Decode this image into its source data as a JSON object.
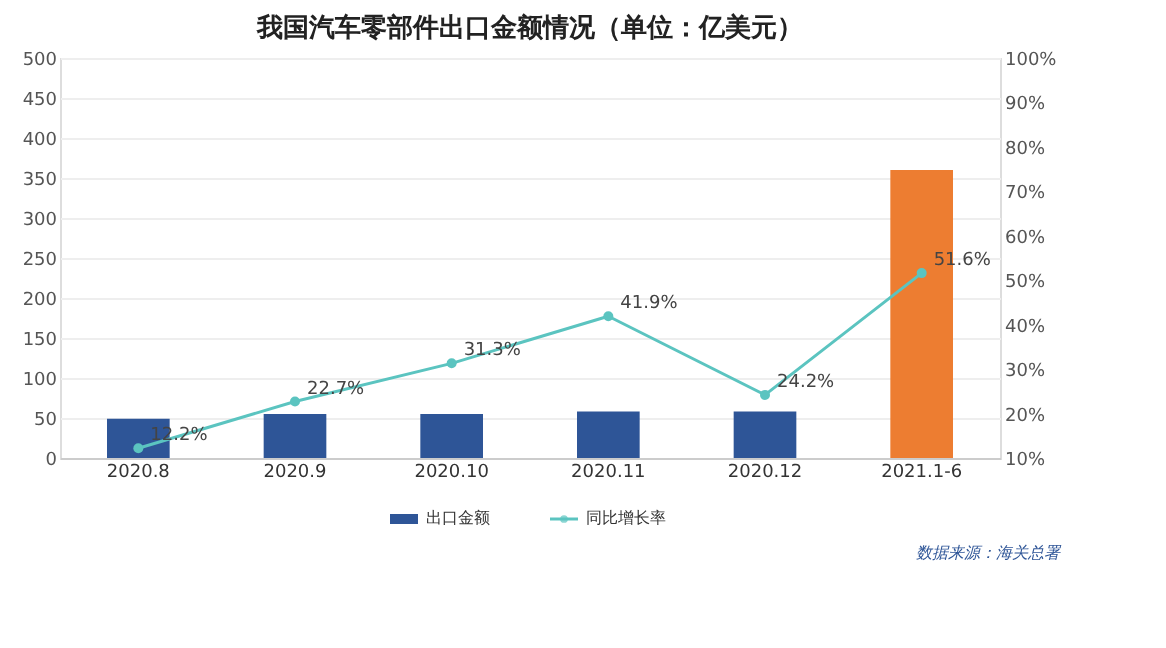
{
  "chart_data": {
    "type": "bar",
    "title": "我国汽车零部件出口金额情况（单位：亿美元）",
    "categories": [
      "2020.8",
      "2020.9",
      "2020.10",
      "2020.11",
      "2020.12",
      "2021.1-6"
    ],
    "series": [
      {
        "name": "出口金额",
        "color": "#2e5597",
        "colors": [
          "#2e5597",
          "#2e5597",
          "#2e5597",
          "#2e5597",
          "#2e5597",
          "#ed7d31"
        ],
        "values": [
          49,
          55,
          55,
          58,
          58,
          360
        ]
      },
      {
        "name": "同比增长率",
        "type": "line",
        "axis": "y2",
        "color": "#5bc4c0",
        "marker": "circle",
        "values": [
          12.2,
          22.7,
          31.3,
          41.9,
          24.2,
          51.6
        ],
        "value_labels": [
          "12.2%",
          "22.7%",
          "31.3%",
          "41.9%",
          "24.2%",
          "51.6%"
        ]
      }
    ],
    "ylim": [
      0,
      500
    ],
    "yticks": [
      0,
      50,
      100,
      150,
      200,
      250,
      300,
      350,
      400,
      450,
      500
    ],
    "y2lim": [
      10,
      100
    ],
    "y2ticks": [
      {
        "value": 10,
        "label": "10%"
      },
      {
        "value": 20,
        "label": "20%"
      },
      {
        "value": 30,
        "label": "30%"
      },
      {
        "value": 40,
        "label": "40%"
      },
      {
        "value": 50,
        "label": "50%"
      },
      {
        "value": 60,
        "label": "60%"
      },
      {
        "value": 70,
        "label": "70%"
      },
      {
        "value": 80,
        "label": "80%"
      },
      {
        "value": 90,
        "label": "90%"
      },
      {
        "value": 100,
        "label": "100%"
      }
    ],
    "grid": "y",
    "legend": "bottom",
    "annotations": [
      "数据来源：海关总署"
    ]
  }
}
